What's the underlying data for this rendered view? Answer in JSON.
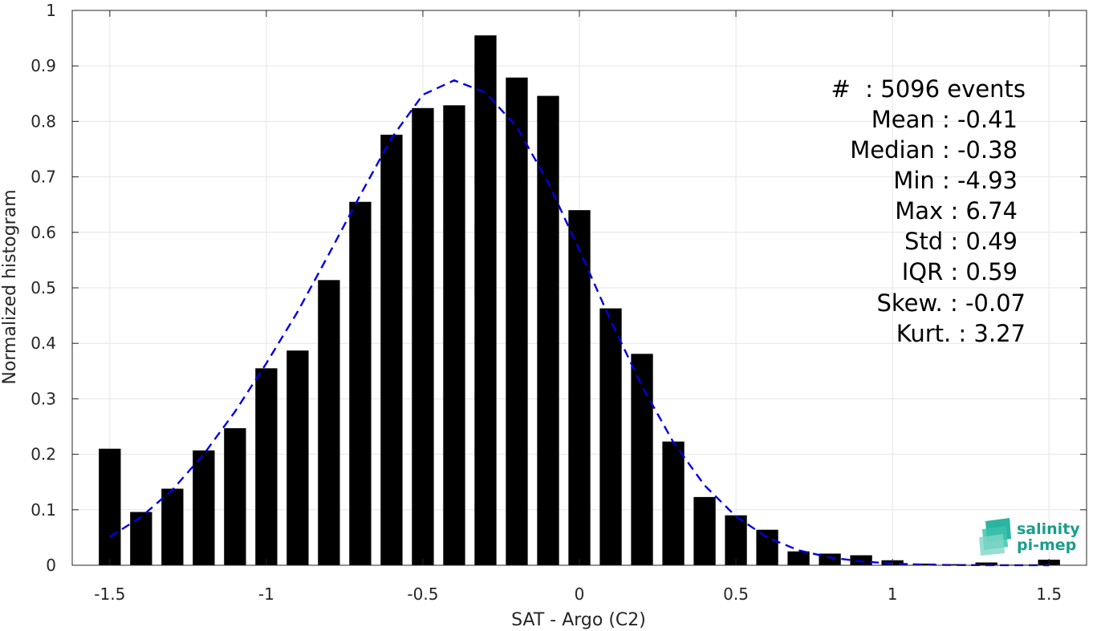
{
  "chart_data": {
    "type": "bar",
    "xlabel": "SAT - Argo (C2)",
    "ylabel": "Normalized histogram",
    "xlim": [
      -1.62,
      1.62
    ],
    "ylim": [
      0,
      1
    ],
    "grid": true,
    "xticks": [
      -1.5,
      -1,
      -0.5,
      0,
      0.5,
      1,
      1.5
    ],
    "xtick_labels": [
      "-1.5",
      "-1",
      "-0.5",
      "0",
      "0.5",
      "1",
      "1.5"
    ],
    "yticks": [
      0,
      0.1,
      0.2,
      0.3,
      0.4,
      0.5,
      0.6,
      0.7,
      0.8,
      0.9,
      1
    ],
    "ytick_labels": [
      "0",
      "0.1",
      "0.2",
      "0.3",
      "0.4",
      "0.5",
      "0.6",
      "0.7",
      "0.8",
      "0.9",
      "1"
    ],
    "bar_color": "#000000",
    "bar_width": 0.07,
    "bars": {
      "x": [
        -1.5,
        -1.4,
        -1.3,
        -1.2,
        -1.1,
        -1.0,
        -0.9,
        -0.8,
        -0.7,
        -0.6,
        -0.5,
        -0.4,
        -0.3,
        -0.2,
        -0.1,
        0.0,
        0.1,
        0.2,
        0.3,
        0.4,
        0.5,
        0.6,
        0.7,
        0.8,
        0.9,
        1.0,
        1.1,
        1.2,
        1.3,
        1.4,
        1.5
      ],
      "values": [
        0.21,
        0.096,
        0.138,
        0.207,
        0.247,
        0.355,
        0.387,
        0.514,
        0.655,
        0.776,
        0.824,
        0.829,
        0.955,
        0.879,
        0.846,
        0.64,
        0.463,
        0.381,
        0.223,
        0.123,
        0.09,
        0.064,
        0.025,
        0.021,
        0.018,
        0.009,
        0.003,
        0.002,
        0.005,
        0.001,
        0.01
      ]
    },
    "fit_curve": {
      "style": "dashed",
      "color": "#0000e6",
      "x": [
        -1.5,
        -1.4,
        -1.3,
        -1.2,
        -1.1,
        -1.0,
        -0.9,
        -0.8,
        -0.7,
        -0.6,
        -0.5,
        -0.4,
        -0.3,
        -0.2,
        -0.1,
        0.0,
        0.1,
        0.2,
        0.3,
        0.4,
        0.5,
        0.6,
        0.7,
        0.8,
        0.9,
        1.0,
        1.1,
        1.2,
        1.3,
        1.4,
        1.5
      ],
      "values": [
        0.051,
        0.087,
        0.136,
        0.2,
        0.277,
        0.364,
        0.457,
        0.561,
        0.667,
        0.77,
        0.848,
        0.874,
        0.852,
        0.79,
        0.69,
        0.568,
        0.441,
        0.323,
        0.222,
        0.144,
        0.088,
        0.05,
        0.027,
        0.014,
        0.007,
        0.003,
        0.001,
        0.0005,
        0.0002,
        0.0001,
        0.0
      ]
    }
  },
  "stats": {
    "lines": [
      "#  : 5096 events",
      "Mean : -0.41",
      "Median : -0.38",
      "Min : -4.93",
      "Max : 6.74",
      "Std : 0.49",
      "IQR : 0.59",
      "Skew. : -0.07",
      "Kurt. : 3.27"
    ]
  },
  "logo": {
    "line1": "salinity",
    "line2": "pi-mep",
    "color": "#1a9e8c"
  }
}
